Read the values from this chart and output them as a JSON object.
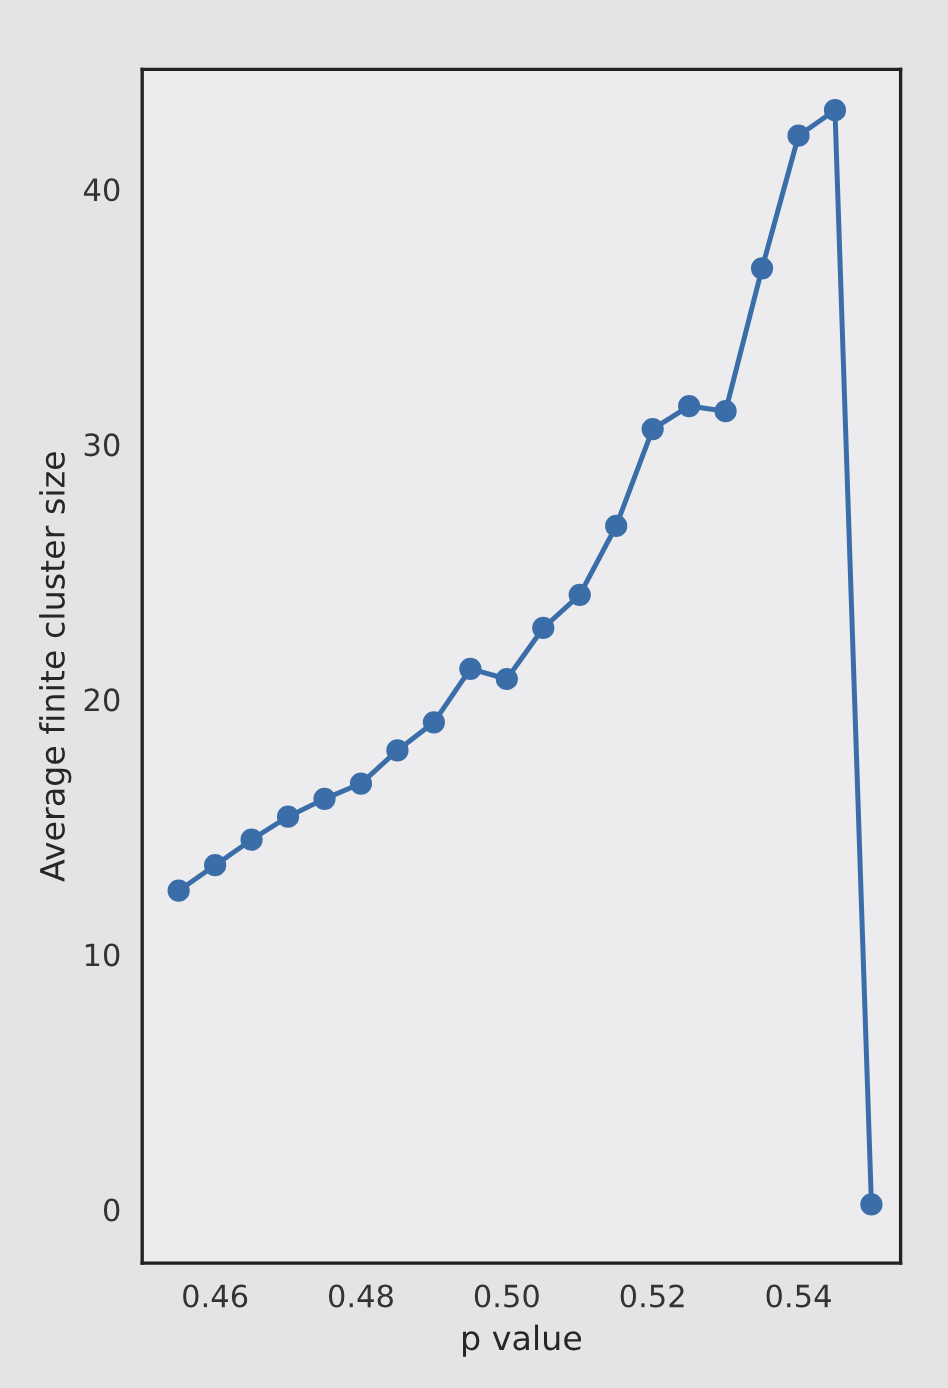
{
  "chart_data": {
    "type": "line",
    "xlabel": "p value",
    "ylabel": "Average finite cluster size",
    "x": [
      0.455,
      0.46,
      0.465,
      0.47,
      0.475,
      0.48,
      0.485,
      0.49,
      0.495,
      0.5,
      0.505,
      0.51,
      0.515,
      0.52,
      0.525,
      0.53,
      0.535,
      0.54,
      0.545,
      0.55
    ],
    "series": [
      {
        "color": "#3b6ea8",
        "values": [
          12.5,
          13.5,
          14.5,
          15.4,
          16.1,
          16.7,
          18.0,
          19.1,
          21.2,
          20.8,
          22.8,
          24.1,
          26.8,
          30.6,
          31.5,
          31.3,
          36.9,
          42.1,
          43.1,
          0.2
        ]
      }
    ],
    "xlim": [
      0.45,
      0.554
    ],
    "xticks": [
      {
        "value": 0.46,
        "label": "0.46"
      },
      {
        "value": 0.48,
        "label": "0.48"
      },
      {
        "value": 0.5,
        "label": "0.50"
      },
      {
        "value": 0.52,
        "label": "0.52"
      },
      {
        "value": 0.54,
        "label": "0.54"
      }
    ],
    "ylim": [
      -2.1,
      44.7
    ],
    "yticks": [
      0,
      10,
      20,
      30,
      40
    ],
    "marker": "circle",
    "line_style": "solid",
    "grid": false,
    "legend": false
  }
}
